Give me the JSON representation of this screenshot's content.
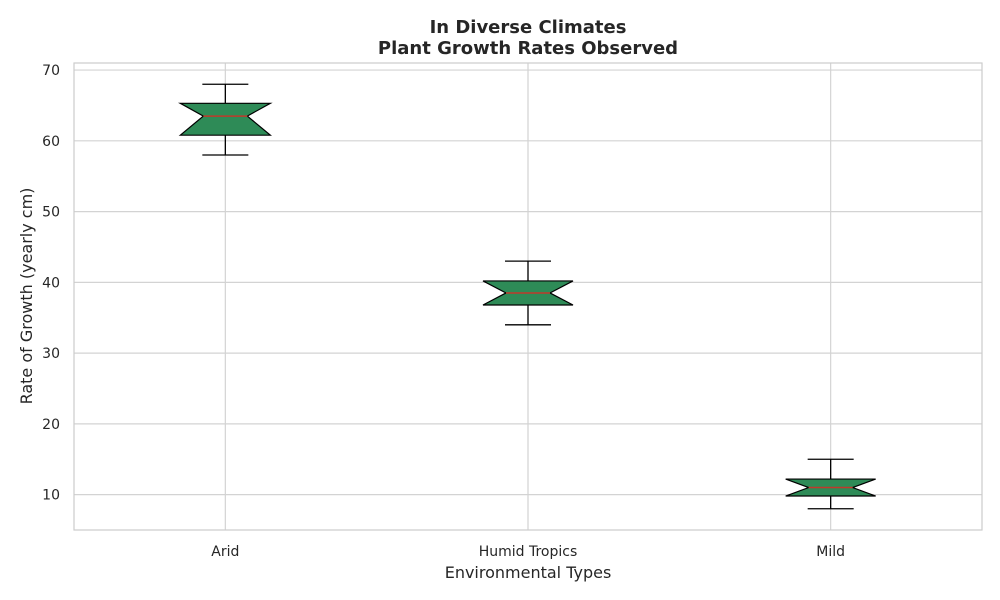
{
  "chart_data": {
    "type": "box",
    "title_lines": [
      "In Diverse Climates",
      "Plant Growth Rates Observed"
    ],
    "xlabel": "Environmental Types",
    "ylabel": "Rate of Growth (yearly cm)",
    "ylim": [
      5,
      71
    ],
    "yticks": [
      10,
      20,
      30,
      40,
      50,
      60,
      70
    ],
    "grid": true,
    "notched": true,
    "categories": [
      "Arid",
      "Humid Tropics",
      "Mild"
    ],
    "boxes": [
      {
        "category": "Arid",
        "whisker_low": 58,
        "q1": 60.8,
        "median": 63.5,
        "q3": 65.3,
        "whisker_high": 68,
        "notch_low": 60.8,
        "notch_high": 65.3
      },
      {
        "category": "Humid Tropics",
        "whisker_low": 34,
        "q1": 36.8,
        "median": 38.5,
        "q3": 40.2,
        "whisker_high": 43,
        "notch_low": 36.8,
        "notch_high": 40.2
      },
      {
        "category": "Mild",
        "whisker_low": 8,
        "q1": 9.8,
        "median": 11,
        "q3": 12.2,
        "whisker_high": 15,
        "notch_low": 9.8,
        "notch_high": 12.2
      }
    ],
    "colors": {
      "box_fill": "#2e8b57",
      "box_edge": "#000000",
      "median": "#c0392b",
      "grid": "#d3d3d3",
      "spine": "#cccccc",
      "whisker": "#000000"
    }
  }
}
